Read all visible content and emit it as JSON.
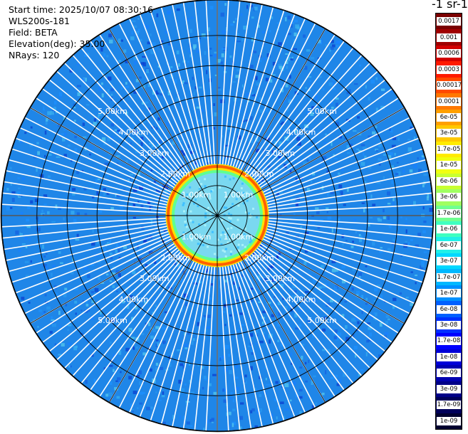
{
  "info": {
    "start_time": "Start time: 2025/10/07 08:30:16",
    "instrument": "WLS200s-181",
    "field": "Field: BETA",
    "elevation": "Elevation(deg): 35.00",
    "nrays": "NRays: 120"
  },
  "unit_title": "-1 sr-1",
  "range_rings": [
    {
      "label": "1.00km",
      "km": 1
    },
    {
      "label": "2.00km",
      "km": 2
    },
    {
      "label": "3.00km",
      "km": 3
    },
    {
      "label": "4.00km",
      "km": 4
    },
    {
      "label": "5.00km",
      "km": 5
    }
  ],
  "colorbar": {
    "labels": [
      "0.0017",
      "0.001",
      "0.0006",
      "0.0003",
      "0.00017",
      "0.0001",
      "6e-05",
      "3e-05",
      "1.7e-05",
      "1e-05",
      "6e-06",
      "3e-06",
      "1.7e-06",
      "1e-06",
      "6e-07",
      "3e-07",
      "1.7e-07",
      "1e-07",
      "6e-08",
      "3e-08",
      "1.7e-08",
      "1e-08",
      "6e-09",
      "3e-09",
      "1.7e-09",
      "1e-09"
    ],
    "colors": [
      "#7a0000",
      "#a00000",
      "#d20000",
      "#ff1a00",
      "#ff4a00",
      "#ff7800",
      "#ffa000",
      "#ffc800",
      "#ffeb00",
      "#f0ff10",
      "#c8ff30",
      "#a0ff60",
      "#70ff90",
      "#40ffc0",
      "#20f0e8",
      "#00d8ff",
      "#00b8ff",
      "#0090ff",
      "#0060ff",
      "#0030ff",
      "#0000ff",
      "#0000d8",
      "#0000b0",
      "#000088",
      "#00005a",
      "#000030"
    ]
  }
}
